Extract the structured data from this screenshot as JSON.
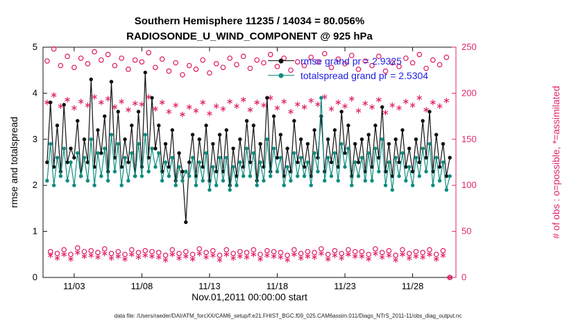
{
  "colors": {
    "obs": "#e0266e",
    "rmse": "#111111",
    "totalspread": "#0e8c80",
    "legend_text": "#2020e0",
    "axis": "#111111"
  },
  "footer": {
    "text": "data file: /Users/raeder/DAI/ATM_forcXX/CAM6_setup/f.e21.FHIST_BGC.f09_025.CAM6assim.011/Diags_NTrS_2011-11/obs_diag_output.nc"
  },
  "chart_data": {
    "type": "line",
    "title": "Southern Hemisphere 11235 / 14034 = 80.056%",
    "subtitle": "RADIOSONDE_U_WIND_COMPONENT @ 925 hPa",
    "xlabel": "Nov.01,2011 00:00:00 start",
    "ylabel_left": "rmse and totalspread",
    "ylabel_right": "# of obs : o=possible, *=assimilated",
    "stats": {
      "assimilated_total": 11235,
      "possible_total": 14034,
      "percent_assimilated": "80.056%",
      "level": "925 hPa"
    },
    "xlim": [
      -0.3,
      30.2
    ],
    "ylim_left": [
      0,
      5
    ],
    "ylim_right": [
      0,
      250
    ],
    "x_interval_days": 0.25,
    "xticks": [
      {
        "t": 2,
        "label": "11/03"
      },
      {
        "t": 7,
        "label": "11/08"
      },
      {
        "t": 12,
        "label": "11/13"
      },
      {
        "t": 17,
        "label": "11/18"
      },
      {
        "t": 22,
        "label": "11/23"
      },
      {
        "t": 27,
        "label": "11/28"
      }
    ],
    "yticks_left": [
      0,
      1,
      2,
      3,
      4,
      5
    ],
    "yticks_right": [
      0,
      50,
      100,
      150,
      200,
      250
    ],
    "legend_position": "top-center",
    "grid": false,
    "series": [
      {
        "name": "rmse",
        "legend": "rmse grand pr = 2.9325",
        "axis": "left",
        "style": "line-dot",
        "color": "#111111",
        "values": [
          2.5,
          3.8,
          2.4,
          3.3,
          2.3,
          3.75,
          2.5,
          2.8,
          2.6,
          3.4,
          2.2,
          3.0,
          2.5,
          4.3,
          2.4,
          3.2,
          2.7,
          3.5,
          2.3,
          4.25,
          2.6,
          3.6,
          2.4,
          3.0,
          2.5,
          3.3,
          2.2,
          3.6,
          2.4,
          4.45,
          2.6,
          3.9,
          2.8,
          3.3,
          2.3,
          2.9,
          2.4,
          3.2,
          2.1,
          2.7,
          2.3,
          1.2,
          2.5,
          3.1,
          2.2,
          3.0,
          2.4,
          3.3,
          2.1,
          2.9,
          2.3,
          3.1,
          2.3,
          3.2,
          2.0,
          2.8,
          2.2,
          3.0,
          2.4,
          3.4,
          2.5,
          3.3,
          2.1,
          2.9,
          2.4,
          3.9,
          2.3,
          3.5,
          2.6,
          3.1,
          2.2,
          2.8,
          2.3,
          3.4,
          2.5,
          3.0,
          2.4,
          2.9,
          2.2,
          3.2,
          2.6,
          3.5,
          2.3,
          3.0,
          2.5,
          3.2,
          2.4,
          3.6,
          2.7,
          3.3,
          2.2,
          2.9,
          2.5,
          3.0,
          2.3,
          3.1,
          2.4,
          3.3,
          2.6,
          3.7,
          2.3,
          2.9,
          2.2,
          3.0,
          2.5,
          3.2,
          2.4,
          2.8,
          2.3,
          3.0,
          2.5,
          3.4,
          2.6,
          3.6,
          2.3,
          3.1,
          2.4,
          2.9,
          2.2,
          2.6
        ]
      },
      {
        "name": "totalspread",
        "legend": "totalspread grand pr = 2.5304",
        "axis": "left",
        "style": "line-dot",
        "color": "#0e8c80",
        "values": [
          2.1,
          2.9,
          2.0,
          2.6,
          2.2,
          2.8,
          2.1,
          2.5,
          2.0,
          2.7,
          2.2,
          2.6,
          2.1,
          3.0,
          2.0,
          2.7,
          2.2,
          2.8,
          2.1,
          3.1,
          2.3,
          2.9,
          2.0,
          2.6,
          2.1,
          2.7,
          2.2,
          2.9,
          2.2,
          3.1,
          2.3,
          2.8,
          2.4,
          2.7,
          2.1,
          2.5,
          2.2,
          2.6,
          2.0,
          2.4,
          2.1,
          2.3,
          2.2,
          2.6,
          2.0,
          2.5,
          2.1,
          2.7,
          1.9,
          2.4,
          2.0,
          2.6,
          2.1,
          2.6,
          1.9,
          2.4,
          2.0,
          2.5,
          2.2,
          2.8,
          2.2,
          2.7,
          2.0,
          2.5,
          2.1,
          3.0,
          2.2,
          2.8,
          2.3,
          2.6,
          2.0,
          2.4,
          2.1,
          2.7,
          2.2,
          2.6,
          2.2,
          2.5,
          2.0,
          2.7,
          2.3,
          3.9,
          2.1,
          2.6,
          2.2,
          2.7,
          2.1,
          2.9,
          2.4,
          2.8,
          2.0,
          2.5,
          2.2,
          2.6,
          2.1,
          2.7,
          2.1,
          2.8,
          2.3,
          3.0,
          2.0,
          2.5,
          1.9,
          2.6,
          2.2,
          2.7,
          2.1,
          2.4,
          2.0,
          2.6,
          2.2,
          2.8,
          2.3,
          2.9,
          2.0,
          2.6,
          2.1,
          2.5,
          1.9,
          2.2
        ]
      },
      {
        "name": "possible-obs",
        "legend": "o=possible",
        "axis": "right",
        "style": "circle",
        "color": "#e0266e",
        "values": [
          235,
          28,
          248,
          26,
          230,
          30,
          240,
          25,
          228,
          32,
          238,
          28,
          232,
          29,
          245,
          27,
          236,
          31,
          242,
          26,
          230,
          28,
          238,
          25,
          226,
          30,
          236,
          27,
          234,
          29,
          244,
          28,
          228,
          27,
          237,
          24,
          224,
          30,
          233,
          26,
          220,
          28,
          230,
          25,
          226,
          31,
          236,
          27,
          222,
          29,
          232,
          24,
          228,
          30,
          238,
          26,
          231,
          28,
          240,
          27,
          227,
          30,
          236,
          25,
          233,
          29,
          242,
          28,
          229,
          27,
          238,
          24,
          225,
          30,
          234,
          26,
          230,
          28,
          239,
          27,
          234,
          31,
          243,
          25,
          228,
          29,
          237,
          26,
          232,
          30,
          241,
          28,
          226,
          28,
          235,
          25,
          230,
          31,
          240,
          27,
          224,
          29,
          233,
          24,
          229,
          30,
          238,
          26,
          233,
          28,
          242,
          27,
          227,
          30,
          236,
          25,
          231,
          29,
          239,
          0
        ]
      },
      {
        "name": "assimilated-obs",
        "legend": "*=assimilated",
        "axis": "right",
        "style": "asterisk",
        "color": "#e0266e",
        "values": [
          190,
          24,
          198,
          21,
          186,
          25,
          193,
          20,
          184,
          27,
          191,
          23,
          187,
          24,
          196,
          22,
          190,
          26,
          194,
          21,
          185,
          23,
          191,
          20,
          182,
          25,
          189,
          22,
          188,
          24,
          196,
          23,
          183,
          22,
          190,
          19,
          180,
          25,
          187,
          21,
          177,
          23,
          185,
          20,
          181,
          26,
          190,
          22,
          178,
          24,
          186,
          19,
          183,
          25,
          191,
          21,
          186,
          23,
          193,
          22,
          182,
          25,
          190,
          20,
          187,
          24,
          195,
          23,
          184,
          22,
          191,
          19,
          180,
          25,
          188,
          21,
          185,
          23,
          192,
          22,
          188,
          26,
          196,
          20,
          183,
          24,
          190,
          21,
          186,
          25,
          194,
          23,
          181,
          23,
          189,
          20,
          185,
          26,
          193,
          22,
          179,
          24,
          187,
          19,
          184,
          25,
          191,
          21,
          187,
          23,
          195,
          22,
          182,
          25,
          190,
          20,
          186,
          24,
          192,
          0
        ]
      }
    ]
  }
}
